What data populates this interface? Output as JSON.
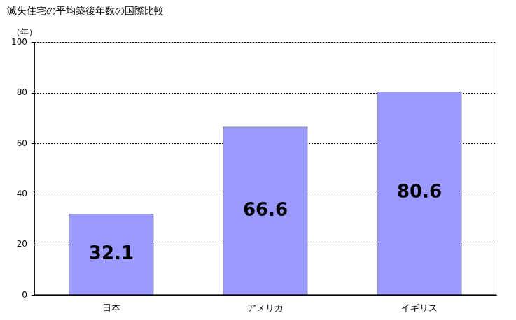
{
  "chart_data": {
    "type": "bar",
    "title": "滅失住宅の平均築後年数の国際比較",
    "y_label": "（年）",
    "categories": [
      "日本",
      "アメリカ",
      "イギリス"
    ],
    "values": [
      32.1,
      66.6,
      80.6
    ],
    "color": "#9999ff",
    "ylim": [
      0,
      100
    ],
    "yticks": [
      0,
      20,
      40,
      60,
      80,
      100
    ],
    "grid": true,
    "data_labels": true
  }
}
